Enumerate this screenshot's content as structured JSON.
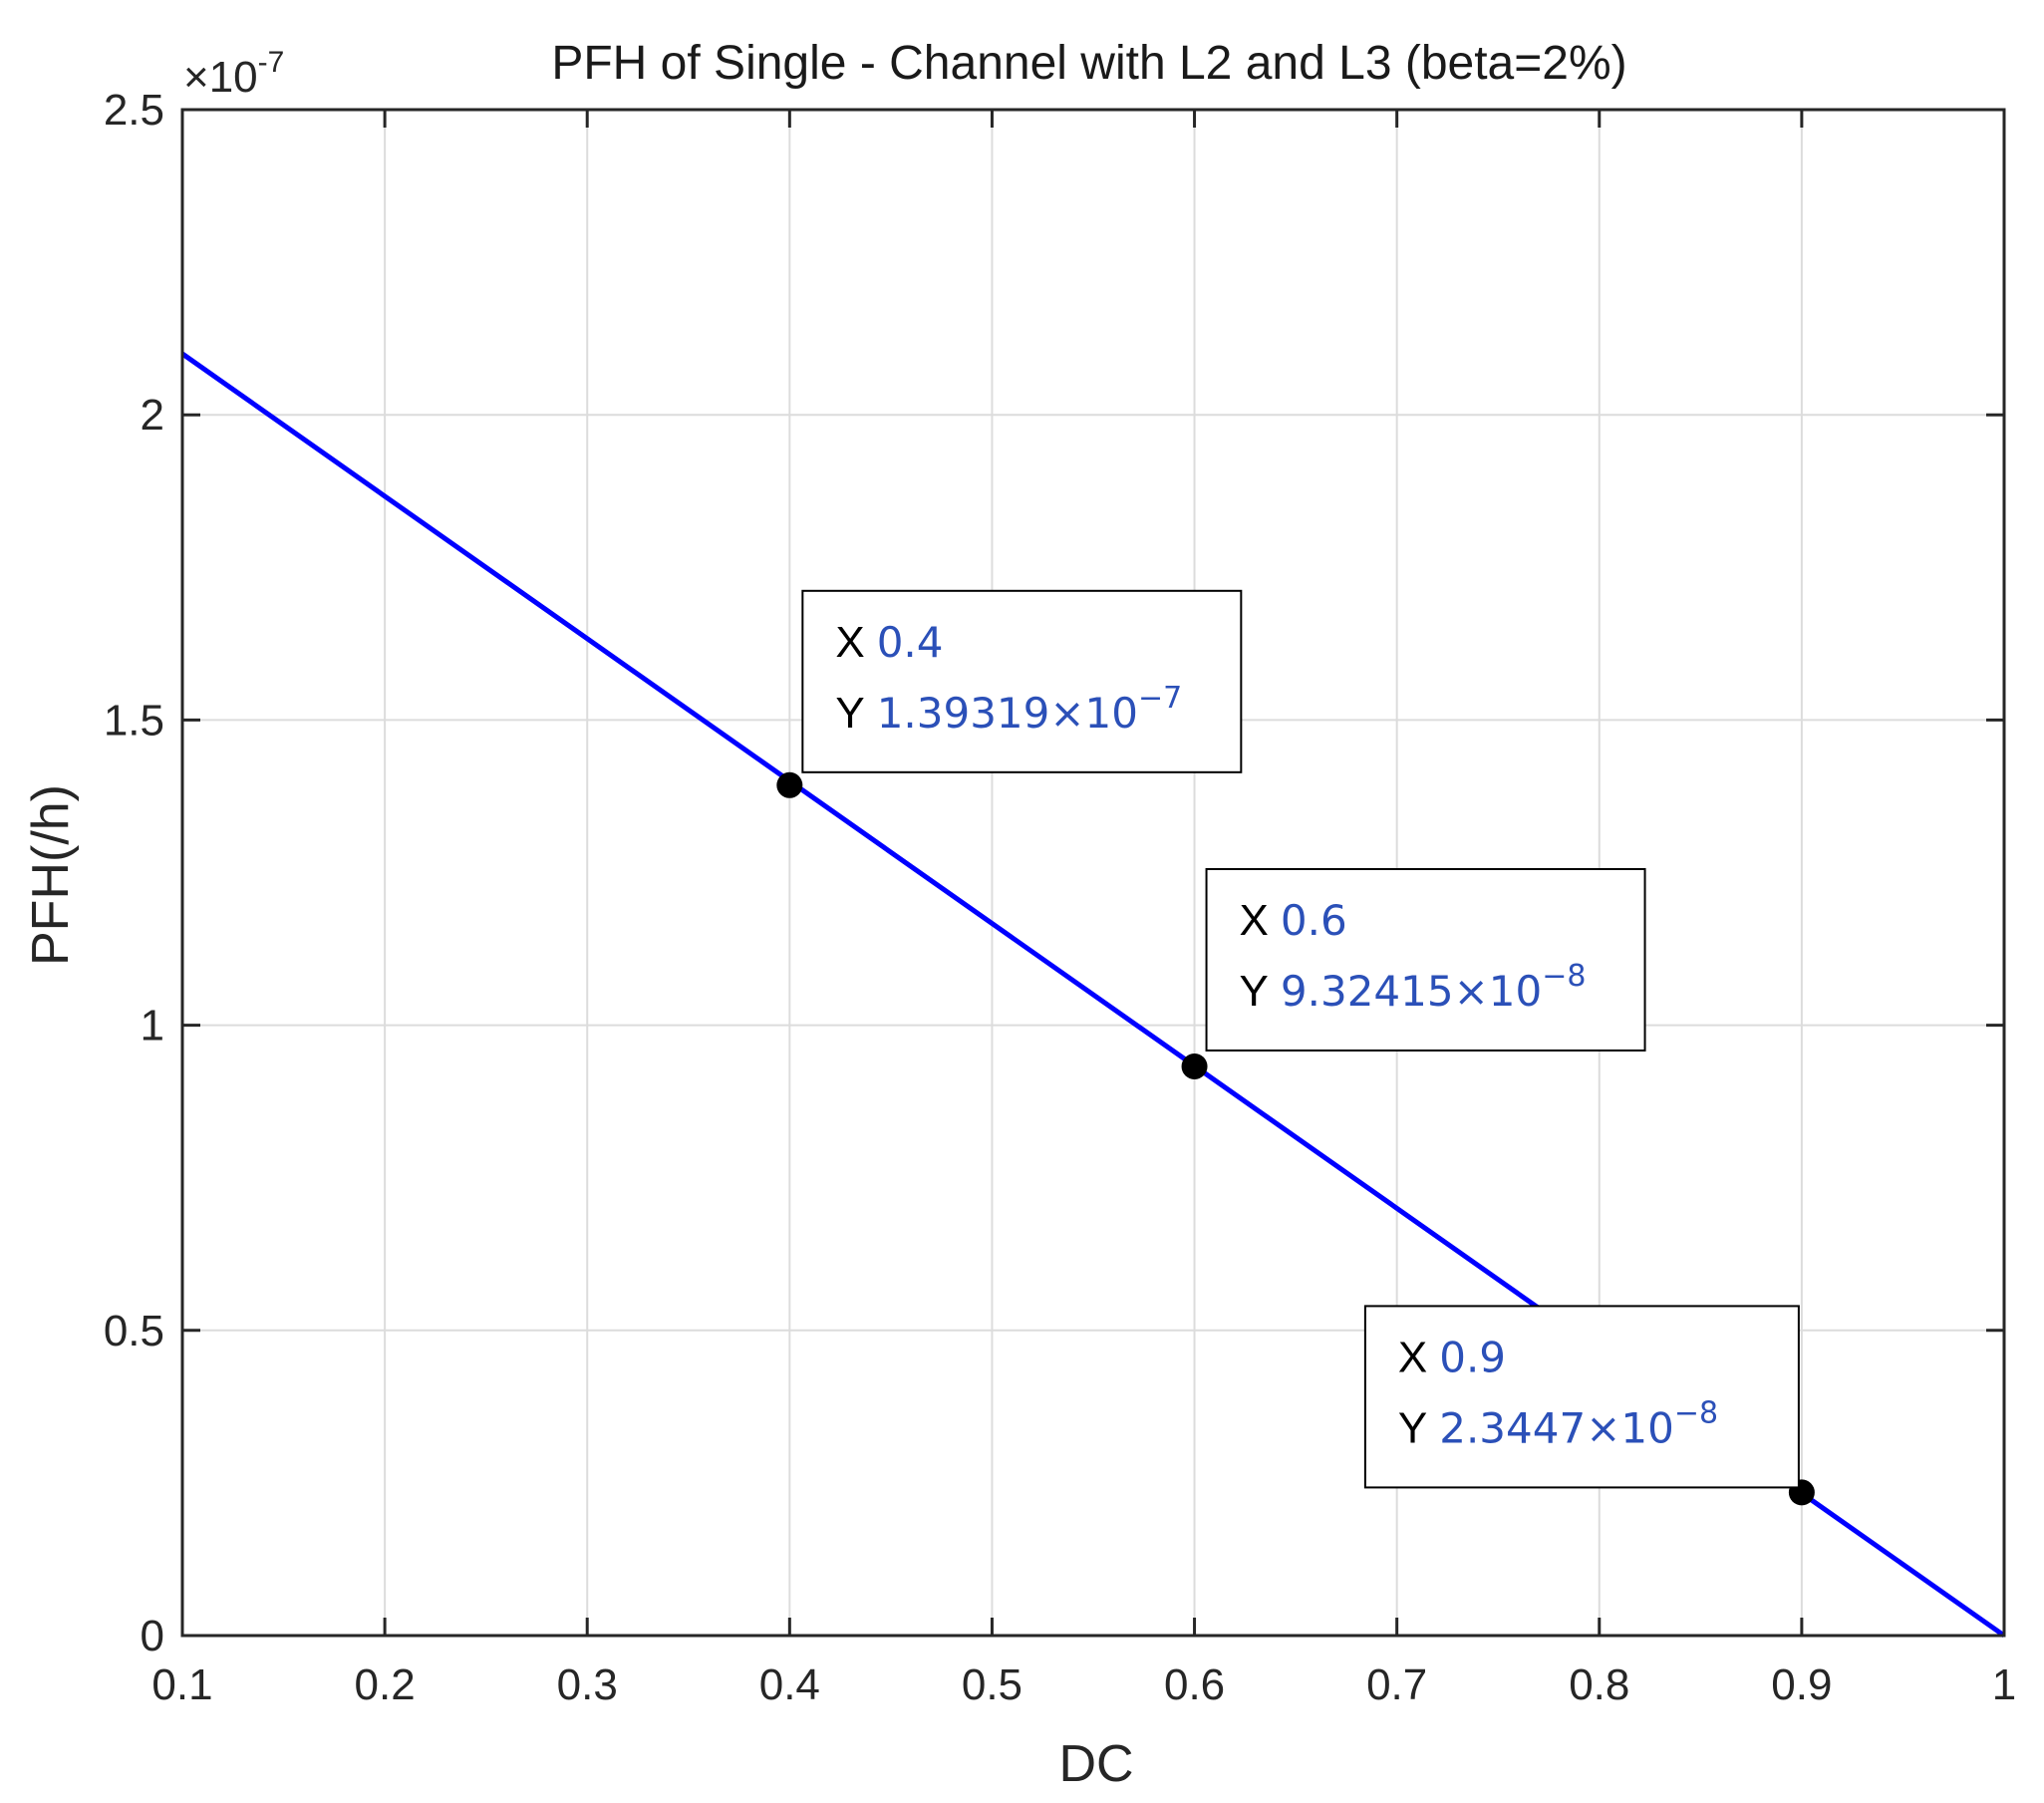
{
  "chart_data": {
    "type": "line",
    "title": "PFH of Single - Channel with L2 and L3 (beta=2%)",
    "xlabel": "DC",
    "ylabel": "PFH(/h)",
    "y_multiplier": {
      "prefix": "×10",
      "exponent": "-7"
    },
    "xlim": [
      0.1,
      1
    ],
    "ylim": [
      0,
      2.5
    ],
    "x_ticks": [
      "0.1",
      "0.2",
      "0.3",
      "0.4",
      "0.5",
      "0.6",
      "0.7",
      "0.8",
      "0.9",
      "1"
    ],
    "y_ticks": [
      "0",
      "0.5",
      "1",
      "1.5",
      "2",
      "2.5"
    ],
    "grid": true,
    "series": [
      {
        "color": "#0000ff",
        "x": [
          0.1,
          1.0
        ],
        "y": [
          2.1e-07,
          0.0
        ]
      }
    ],
    "datatips": [
      {
        "x_key": "X",
        "x_val": "0.4",
        "y_key": "Y",
        "y_mant": "1.39319×10",
        "y_exp": "−7",
        "x": 0.4,
        "y": 1.39319e-07
      },
      {
        "x_key": "X",
        "x_val": "0.6",
        "y_key": "Y",
        "y_mant": "9.32415×10",
        "y_exp": "−8",
        "x": 0.6,
        "y": 9.32415e-08
      },
      {
        "x_key": "X",
        "x_val": "0.9",
        "y_key": "Y",
        "y_mant": "2.3447×10",
        "y_exp": "−8",
        "x": 0.9,
        "y": 2.3447e-08
      }
    ]
  }
}
